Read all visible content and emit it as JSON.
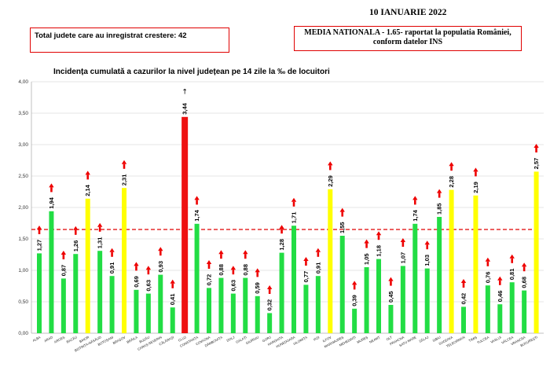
{
  "header": {
    "date": "10 IANUARIE 2022",
    "counties_increase": "Total judete care au inregistrat crestere: 42",
    "national_average_line1": "MEDIA NATIONALA - 1.65-  raportat la populatia României,",
    "national_average_line2": "conform datelor INS"
  },
  "chart_data": {
    "type": "bar",
    "title": "Incidența cumulată a cazurilor la nivel județean pe 14 zile la ‰ de locuitori",
    "xlabel": "",
    "ylabel": "",
    "ylim": [
      0,
      4
    ],
    "yticks": [
      "0,00",
      "0,50",
      "1,00",
      "1,50",
      "2,00",
      "2,50",
      "3,00",
      "3,50",
      "4,00"
    ],
    "reference_line": {
      "label": "MEDIA NATIONALA",
      "value": 1.65
    },
    "categories": [
      "ALBA",
      "ARAD",
      "ARGEȘ",
      "BACĂU",
      "BIHOR",
      "BISTRIȚA-NĂSĂUD",
      "BOTOȘANI",
      "BRAȘOV",
      "BRĂILA",
      "BUZĂU",
      "CARAȘ-SEVERIN",
      "CĂLĂRAȘI",
      "CLUJ",
      "CONSTANȚA",
      "COVASNA",
      "DÂMBOVIȚA",
      "DOLJ",
      "GALAȚI",
      "GIURGIU",
      "GORJ",
      "HARGHITA",
      "HUNEDOARA",
      "IALOMIȚA",
      "IAȘI",
      "ILFOV",
      "MARAMUREȘ",
      "MEHEDINȚI",
      "MUREȘ",
      "NEAMȚ",
      "OLT",
      "PRAHOVA",
      "SATU MARE",
      "SĂLAJ",
      "SIBIU",
      "SUCEAVA",
      "TELEORMAN",
      "TIMIȘ",
      "TULCEA",
      "VASLUI",
      "VÂLCEA",
      "VRANCEA",
      "BUCUREȘTI"
    ],
    "values": [
      1.27,
      1.94,
      0.87,
      1.26,
      2.14,
      1.31,
      0.91,
      2.31,
      0.69,
      0.63,
      0.93,
      0.41,
      3.44,
      1.74,
      0.72,
      0.88,
      0.63,
      0.88,
      0.59,
      0.32,
      1.28,
      1.71,
      0.77,
      0.91,
      2.29,
      1.55,
      0.39,
      1.05,
      1.18,
      0.45,
      1.07,
      1.74,
      1.03,
      1.85,
      2.28,
      0.42,
      2.19,
      0.76,
      0.46,
      0.81,
      0.68,
      2.57
    ],
    "labels": [
      "1,27",
      "1,94",
      "0,87",
      "1,26",
      "2,14",
      "1,31",
      "0,91",
      "2,31",
      "0,69",
      "0,63",
      "0,93",
      "0,41",
      "3,44",
      "1,74",
      "0,72",
      "0,88",
      "0,63",
      "0,88",
      "0,59",
      "0,32",
      "1,28",
      "1,71",
      "0,77",
      "0,91",
      "2,29",
      "1,55",
      "0,39",
      "1,05",
      "1,18",
      "0,45",
      "1,07",
      "1,74",
      "1,03",
      "1,85",
      "2,28",
      "0,42",
      "2,19",
      "0,76",
      "0,46",
      "0,81",
      "0,68",
      "2,57"
    ],
    "bar_status": [
      "green",
      "green",
      "green",
      "green",
      "yellow",
      "green",
      "green",
      "yellow",
      "green",
      "green",
      "green",
      "green",
      "red",
      "green",
      "green",
      "green",
      "green",
      "green",
      "green",
      "green",
      "green",
      "green",
      "green",
      "green",
      "yellow",
      "green",
      "green",
      "green",
      "green",
      "green",
      "green",
      "green",
      "green",
      "green",
      "yellow",
      "green",
      "yellow",
      "green",
      "green",
      "green",
      "green",
      "yellow"
    ],
    "colors": {
      "green": "#22dd44",
      "yellow": "#ffff00",
      "red": "#ee1111",
      "arrow": "#ee0000",
      "avg_line": "#e00000",
      "grid": "#cccccc"
    }
  }
}
